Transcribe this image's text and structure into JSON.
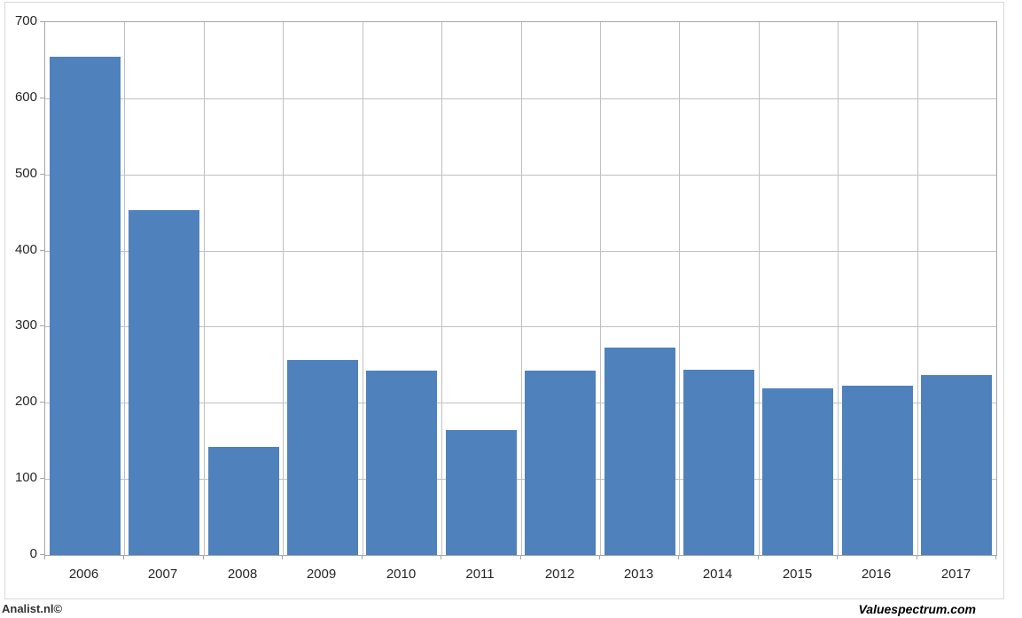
{
  "chart_data": {
    "type": "bar",
    "title": "",
    "xlabel": "",
    "ylabel": "",
    "categories": [
      "2006",
      "2007",
      "2008",
      "2009",
      "2010",
      "2011",
      "2012",
      "2013",
      "2014",
      "2015",
      "2016",
      "2017"
    ],
    "series": [
      {
        "name": "value",
        "values": [
          655,
          453,
          142,
          256,
          242,
          164,
          242,
          273,
          244,
          219,
          223,
          237
        ]
      }
    ],
    "ylim": [
      0,
      700
    ],
    "yticks": [
      0,
      100,
      200,
      300,
      400,
      500,
      600,
      700
    ],
    "grid": "horizontal gridlines at every 100; vertical gridlines at category boundaries",
    "legend": "none",
    "bar_color": "#4F81BD"
  },
  "colors": {
    "bar_fill": "#4F81BD",
    "gridline": "#c0c0c0",
    "axis_line": "#a6a6a6",
    "frame_border": "#d9d9d9",
    "tick_text": "#262626"
  },
  "footer": {
    "left_credit": "Analist.nl©",
    "right_credit": "Valuespectrum.com"
  }
}
